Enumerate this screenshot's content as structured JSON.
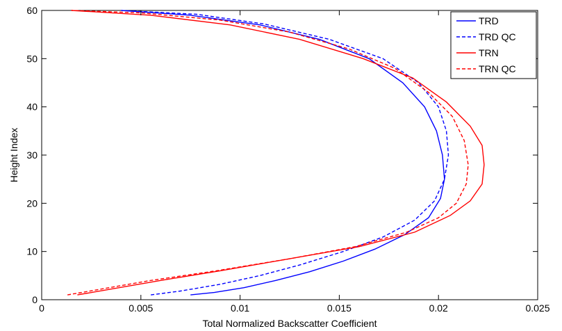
{
  "chart_data": {
    "type": "line",
    "title": "",
    "xlabel": "Total Normalized Backscatter Coefficient",
    "ylabel": "Height Index",
    "xlim": [
      0,
      0.025
    ],
    "ylim": [
      0,
      60
    ],
    "xticks": [
      0,
      0.005,
      0.01,
      0.015,
      0.02,
      0.025
    ],
    "xtick_labels": [
      "0",
      "0.005",
      "0.01",
      "0.015",
      "0.02",
      "0.025"
    ],
    "yticks": [
      0,
      10,
      20,
      30,
      40,
      50,
      60
    ],
    "ytick_labels": [
      "0",
      "10",
      "20",
      "30",
      "40",
      "50",
      "60"
    ],
    "grid": false,
    "legend_position": "top-right",
    "series": [
      {
        "name": "TRD",
        "color": "#0000ff",
        "dash": "solid",
        "points": [
          [
            0.0075,
            1
          ],
          [
            0.0087,
            1.5
          ],
          [
            0.0102,
            2.5
          ],
          [
            0.0118,
            4
          ],
          [
            0.0135,
            5.8
          ],
          [
            0.0152,
            8
          ],
          [
            0.0168,
            10.5
          ],
          [
            0.0183,
            13.5
          ],
          [
            0.0195,
            17
          ],
          [
            0.0201,
            21
          ],
          [
            0.0203,
            25
          ],
          [
            0.0202,
            30
          ],
          [
            0.0199,
            35
          ],
          [
            0.0193,
            40
          ],
          [
            0.0182,
            45
          ],
          [
            0.0165,
            50
          ],
          [
            0.014,
            54
          ],
          [
            0.011,
            57
          ],
          [
            0.0075,
            59
          ],
          [
            0.004,
            60
          ]
        ]
      },
      {
        "name": "TRD QC",
        "color": "#0000ff",
        "dash": "dashed",
        "points": [
          [
            0.0055,
            1
          ],
          [
            0.007,
            1.8
          ],
          [
            0.009,
            3.2
          ],
          [
            0.011,
            5
          ],
          [
            0.013,
            7.2
          ],
          [
            0.0152,
            10
          ],
          [
            0.0172,
            13
          ],
          [
            0.0188,
            16.5
          ],
          [
            0.0198,
            20.5
          ],
          [
            0.0203,
            25
          ],
          [
            0.0205,
            30
          ],
          [
            0.0204,
            35
          ],
          [
            0.02,
            40
          ],
          [
            0.019,
            45
          ],
          [
            0.0172,
            50
          ],
          [
            0.0145,
            54
          ],
          [
            0.0112,
            57.2
          ],
          [
            0.0078,
            59.2
          ],
          [
            0.004,
            60
          ]
        ]
      },
      {
        "name": "TRN",
        "color": "#ff0000",
        "dash": "solid",
        "points": [
          [
            0.0018,
            1
          ],
          [
            0.0035,
            2.2
          ],
          [
            0.006,
            4
          ],
          [
            0.009,
            6
          ],
          [
            0.0125,
            8.5
          ],
          [
            0.016,
            11
          ],
          [
            0.0188,
            14
          ],
          [
            0.0206,
            17.5
          ],
          [
            0.0216,
            20.5
          ],
          [
            0.0222,
            24
          ],
          [
            0.0223,
            28
          ],
          [
            0.0222,
            32
          ],
          [
            0.0216,
            36
          ],
          [
            0.0204,
            41
          ],
          [
            0.0187,
            46
          ],
          [
            0.0162,
            50
          ],
          [
            0.013,
            54
          ],
          [
            0.0095,
            57
          ],
          [
            0.0055,
            59
          ],
          [
            0.0015,
            60
          ]
        ]
      },
      {
        "name": "TRN QC",
        "color": "#ff0000",
        "dash": "dashed",
        "points": [
          [
            0.0013,
            1
          ],
          [
            0.003,
            2.2
          ],
          [
            0.0055,
            4
          ],
          [
            0.0088,
            6
          ],
          [
            0.0125,
            8.5
          ],
          [
            0.0158,
            11
          ],
          [
            0.0184,
            14
          ],
          [
            0.02,
            17
          ],
          [
            0.0209,
            20
          ],
          [
            0.0214,
            24
          ],
          [
            0.0215,
            28
          ],
          [
            0.0213,
            33
          ],
          [
            0.0207,
            38
          ],
          [
            0.0195,
            43
          ],
          [
            0.0178,
            48
          ],
          [
            0.0155,
            52
          ],
          [
            0.0125,
            55.5
          ],
          [
            0.009,
            58
          ],
          [
            0.005,
            59.5
          ],
          [
            0.0015,
            60
          ]
        ]
      }
    ]
  }
}
